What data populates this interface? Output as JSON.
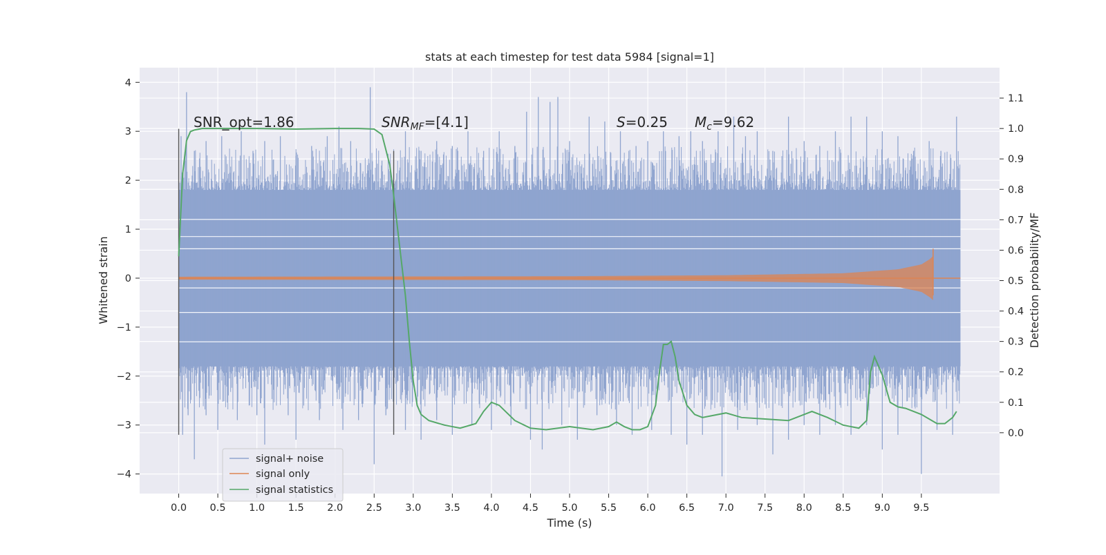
{
  "chart_data": {
    "type": "line",
    "title": "stats at each timestep for test data 5984 [signal=1]",
    "xlabel": "Time (s)",
    "ylabel": "Whitened strain",
    "y2label": "Detection probability/MF",
    "xlim": [
      -0.5,
      10.5
    ],
    "ylim": [
      -4.4,
      4.3
    ],
    "y2lim": [
      -0.2,
      1.2
    ],
    "x_ticks": [
      "0.0",
      "0.5",
      "1.0",
      "1.5",
      "2.0",
      "2.5",
      "3.0",
      "3.5",
      "4.0",
      "4.5",
      "5.0",
      "5.5",
      "6.0",
      "6.5",
      "7.0",
      "7.5",
      "8.0",
      "8.5",
      "9.0",
      "9.5"
    ],
    "y_ticks": [
      "4",
      "3",
      "2",
      "1",
      "0",
      "−1",
      "−2",
      "−3",
      "−4"
    ],
    "y2_ticks": [
      "1.1",
      "1.0",
      "0.9",
      "0.8",
      "0.7",
      "0.6",
      "0.5",
      "0.4",
      "0.3",
      "0.2",
      "0.1",
      "0.0"
    ],
    "grid": true,
    "legend_position": "lower-left",
    "annotations": {
      "snr_opt": "SNR_opt=1.86",
      "snr_mf": "SNR",
      "snr_mf_sub": "MF",
      "snr_mf_value": "=[4.1]",
      "s_sym": "S",
      "s_value": "=0.25",
      "mc_sym": "M",
      "mc_sub": "c",
      "mc_value": "=9.62"
    },
    "markers": [
      {
        "x": 0.0,
        "y_range": [
          -3.2,
          3.05
        ]
      },
      {
        "x": 2.75,
        "y_range": [
          -3.2,
          2.6
        ]
      }
    ],
    "series": [
      {
        "name": "signal+ noise",
        "color": "#8fa4cf",
        "x_range": [
          0.0,
          10.0
        ],
        "band": [
          -1.8,
          1.8
        ],
        "spikes_up": [
          [
            0.03,
            2.9
          ],
          [
            0.08,
            2.4
          ],
          [
            0.1,
            3.8
          ],
          [
            0.2,
            2.6
          ],
          [
            0.35,
            2.8
          ],
          [
            0.55,
            2.9
          ],
          [
            0.62,
            1.0
          ],
          [
            0.8,
            3.0
          ],
          [
            0.95,
            2.6
          ],
          [
            1.1,
            2.8
          ],
          [
            1.3,
            2.9
          ],
          [
            1.5,
            2.5
          ],
          [
            1.7,
            2.7
          ],
          [
            1.9,
            2.9
          ],
          [
            2.05,
            3.1
          ],
          [
            2.2,
            2.8
          ],
          [
            2.45,
            3.9
          ],
          [
            2.6,
            2.4
          ],
          [
            2.9,
            3.0
          ],
          [
            3.1,
            2.6
          ],
          [
            3.3,
            2.8
          ],
          [
            3.5,
            2.7
          ],
          [
            3.7,
            3.0
          ],
          [
            3.9,
            2.6
          ],
          [
            4.1,
            3.0
          ],
          [
            4.3,
            2.7
          ],
          [
            4.45,
            3.4
          ],
          [
            4.6,
            3.7
          ],
          [
            4.75,
            3.6
          ],
          [
            4.85,
            3.7
          ],
          [
            5.0,
            2.8
          ],
          [
            5.25,
            3.3
          ],
          [
            5.45,
            3.2
          ],
          [
            5.65,
            3.0
          ],
          [
            5.85,
            2.7
          ],
          [
            6.0,
            2.8
          ],
          [
            6.2,
            3.0
          ],
          [
            6.4,
            2.9
          ],
          [
            6.55,
            3.0
          ],
          [
            6.7,
            2.8
          ],
          [
            6.9,
            3.0
          ],
          [
            7.1,
            3.3
          ],
          [
            7.25,
            2.9
          ],
          [
            7.4,
            3.0
          ],
          [
            7.6,
            2.6
          ],
          [
            7.8,
            3.3
          ],
          [
            8.0,
            2.8
          ],
          [
            8.2,
            2.7
          ],
          [
            8.4,
            3.0
          ],
          [
            8.6,
            3.3
          ],
          [
            8.8,
            3.3
          ],
          [
            9.0,
            3.0
          ],
          [
            9.2,
            2.9
          ],
          [
            9.4,
            2.6
          ],
          [
            9.6,
            2.8
          ],
          [
            9.75,
            2.6
          ],
          [
            9.95,
            3.3
          ]
        ],
        "spikes_down": [
          [
            0.05,
            -3.2
          ],
          [
            0.12,
            -2.8
          ],
          [
            0.2,
            -3.7
          ],
          [
            0.35,
            -2.8
          ],
          [
            0.5,
            -3.1
          ],
          [
            0.75,
            -2.9
          ],
          [
            1.0,
            -2.8
          ],
          [
            1.1,
            -3.4
          ],
          [
            1.4,
            -2.8
          ],
          [
            1.5,
            -3.3
          ],
          [
            1.8,
            -2.9
          ],
          [
            2.1,
            -3.1
          ],
          [
            2.3,
            -2.9
          ],
          [
            2.5,
            -3.8
          ],
          [
            2.65,
            -2.8
          ],
          [
            2.9,
            -3.1
          ],
          [
            3.1,
            -3.3
          ],
          [
            3.3,
            -2.9
          ],
          [
            3.5,
            -3.2
          ],
          [
            3.75,
            -3.0
          ],
          [
            4.0,
            -3.1
          ],
          [
            4.25,
            -3.0
          ],
          [
            4.5,
            -3.3
          ],
          [
            4.65,
            -3.5
          ],
          [
            4.9,
            -3.0
          ],
          [
            5.1,
            -3.3
          ],
          [
            5.35,
            -2.8
          ],
          [
            5.6,
            -3.0
          ],
          [
            5.8,
            -3.2
          ],
          [
            6.05,
            -3.1
          ],
          [
            6.3,
            -3.2
          ],
          [
            6.5,
            -3.4
          ],
          [
            6.7,
            -3.2
          ],
          [
            6.95,
            -4.05
          ],
          [
            7.15,
            -3.1
          ],
          [
            7.4,
            -3.0
          ],
          [
            7.6,
            -3.6
          ],
          [
            7.8,
            -3.3
          ],
          [
            8.0,
            -3.0
          ],
          [
            8.2,
            -3.2
          ],
          [
            8.4,
            -3.0
          ],
          [
            8.6,
            -3.2
          ],
          [
            8.8,
            -3.0
          ],
          [
            9.0,
            -3.5
          ],
          [
            9.2,
            -3.2
          ],
          [
            9.5,
            -4.0
          ],
          [
            9.7,
            -3.1
          ],
          [
            9.9,
            -3.2
          ]
        ]
      },
      {
        "name": "signal only",
        "color": "#dd8452",
        "x_range": [
          0.0,
          9.65
        ],
        "chirp_amp": [
          [
            0.0,
            0.03
          ],
          [
            5.0,
            0.04
          ],
          [
            7.0,
            0.06
          ],
          [
            8.5,
            0.1
          ],
          [
            9.2,
            0.18
          ],
          [
            9.5,
            0.28
          ],
          [
            9.6,
            0.38
          ],
          [
            9.65,
            0.45
          ]
        ]
      },
      {
        "name": "signal statistics",
        "color": "#55a868",
        "x": [
          0.0,
          0.05,
          0.1,
          0.15,
          0.2,
          0.3,
          0.5,
          1.0,
          1.5,
          2.0,
          2.3,
          2.5,
          2.6,
          2.7,
          2.75,
          2.85,
          2.9,
          2.95,
          3.0,
          3.05,
          3.1,
          3.2,
          3.4,
          3.6,
          3.8,
          3.9,
          4.0,
          4.1,
          4.3,
          4.5,
          4.7,
          5.0,
          5.3,
          5.5,
          5.6,
          5.7,
          5.8,
          5.9,
          6.0,
          6.1,
          6.15,
          6.2,
          6.25,
          6.3,
          6.35,
          6.4,
          6.5,
          6.6,
          6.7,
          6.8,
          7.0,
          7.2,
          7.5,
          7.8,
          8.0,
          8.1,
          8.3,
          8.5,
          8.7,
          8.8,
          8.85,
          8.9,
          9.0,
          9.1,
          9.2,
          9.3,
          9.5,
          9.7,
          9.8,
          9.9,
          9.95
        ],
        "values": [
          0.58,
          0.85,
          0.96,
          0.99,
          0.995,
          1.0,
          1.0,
          1.0,
          0.998,
          1.0,
          1.0,
          0.998,
          0.98,
          0.88,
          0.78,
          0.56,
          0.45,
          0.3,
          0.17,
          0.09,
          0.06,
          0.04,
          0.025,
          0.015,
          0.03,
          0.07,
          0.1,
          0.09,
          0.04,
          0.015,
          0.01,
          0.02,
          0.01,
          0.02,
          0.035,
          0.02,
          0.01,
          0.01,
          0.02,
          0.09,
          0.2,
          0.29,
          0.29,
          0.3,
          0.25,
          0.17,
          0.09,
          0.06,
          0.05,
          0.055,
          0.065,
          0.05,
          0.045,
          0.04,
          0.06,
          0.07,
          0.05,
          0.025,
          0.015,
          0.04,
          0.2,
          0.25,
          0.19,
          0.1,
          0.085,
          0.08,
          0.06,
          0.03,
          0.03,
          0.05,
          0.07
        ]
      }
    ]
  }
}
